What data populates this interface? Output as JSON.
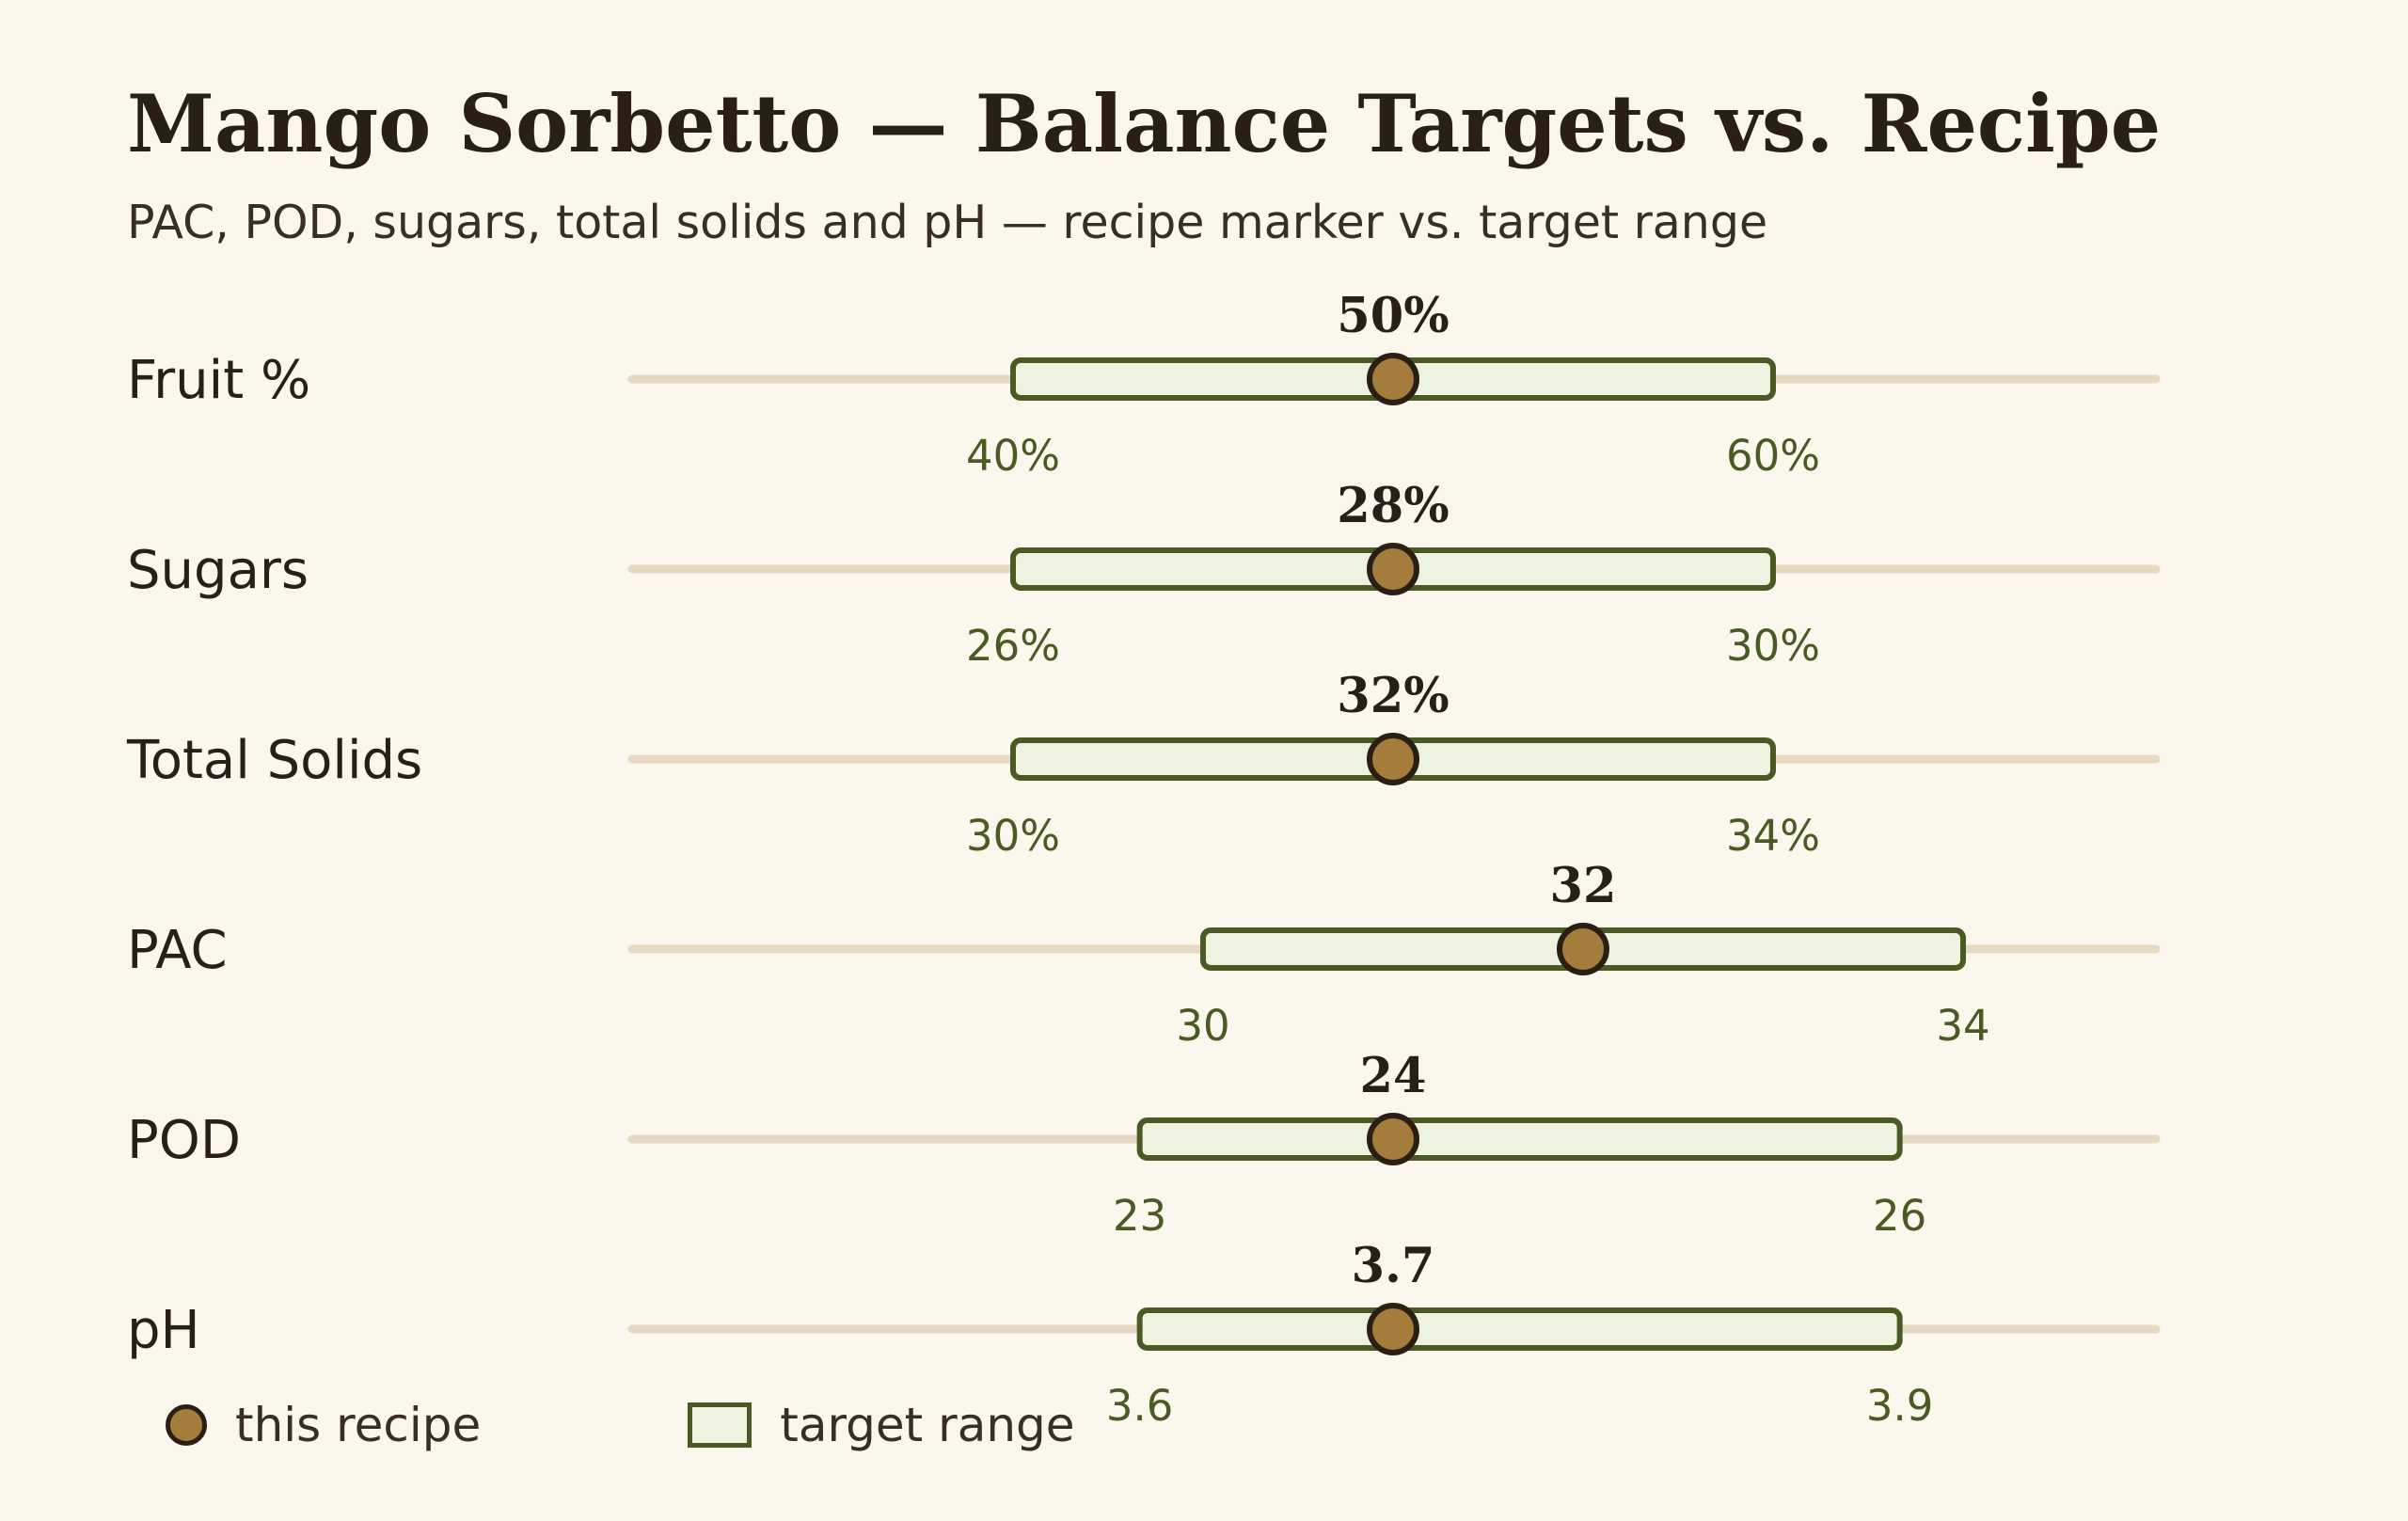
{
  "header": {
    "title": "Mango Sorbetto — Balance Targets vs. Recipe",
    "subtitle": "PAC, POD, sugars, total solids and pH — recipe marker vs. target range"
  },
  "legend": {
    "recipe_label": "this recipe",
    "range_label": "target range"
  },
  "colors": {
    "background": "#fbf7ec",
    "track": "#e8d9c2",
    "range_fill": "#eef2e0",
    "range_stroke": "#4a5a22",
    "marker_fill": "#a47c3c",
    "marker_stroke": "#2a1f14",
    "text": "#2a1f14"
  },
  "chart_data": {
    "type": "range-bullet",
    "title": "Mango Sorbetto — Balance Targets vs. Recipe",
    "subtitle": "PAC, POD, sugars, total solids and pH — recipe marker vs. target range",
    "rows": [
      {
        "label": "Fruit %",
        "value": 50,
        "value_label": "50%",
        "low": 40,
        "low_label": "40%",
        "high": 60,
        "high_label": "60%",
        "ref": 50
      },
      {
        "label": "Sugars",
        "value": 28,
        "value_label": "28%",
        "low": 26,
        "low_label": "26%",
        "high": 30,
        "high_label": "30%",
        "ref": 28
      },
      {
        "label": "Total Solids",
        "value": 32,
        "value_label": "32%",
        "low": 30,
        "low_label": "30%",
        "high": 34,
        "high_label": "34%",
        "ref": 32
      },
      {
        "label": "PAC",
        "value": 32,
        "value_label": "32",
        "low": 30,
        "low_label": "30",
        "high": 34,
        "high_label": "34",
        "ref": 31
      },
      {
        "label": "POD",
        "value": 24,
        "value_label": "24",
        "low": 23,
        "low_label": "23",
        "high": 26,
        "high_label": "26",
        "ref": 24
      },
      {
        "label": "pH",
        "value": 3.7,
        "value_label": "3.7",
        "low": 3.6,
        "low_label": "3.6",
        "high": 3.9,
        "high_label": "3.9",
        "ref": 3.7
      }
    ],
    "legend": [
      "this recipe",
      "target range"
    ],
    "legend_position": "bottom-left",
    "grid": false
  }
}
